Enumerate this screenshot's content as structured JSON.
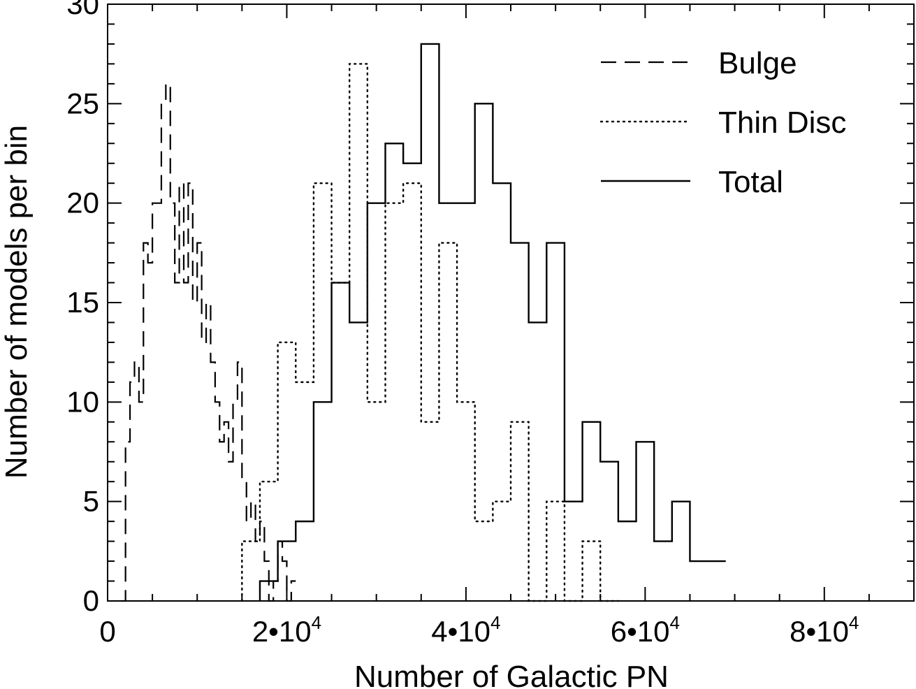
{
  "chart_data": {
    "type": "histogram",
    "title": "",
    "xlabel": "Number of Galactic PN",
    "ylabel": "Number of models per bin",
    "xlim": [
      0,
      90000
    ],
    "ylim": [
      0,
      30
    ],
    "x_ticks": [
      {
        "value": 0,
        "label": "0"
      },
      {
        "value": 20000,
        "mantissa": "2",
        "base": "•10",
        "exp": "4"
      },
      {
        "value": 40000,
        "mantissa": "4",
        "base": "•10",
        "exp": "4"
      },
      {
        "value": 60000,
        "mantissa": "6",
        "base": "•10",
        "exp": "4"
      },
      {
        "value": 80000,
        "mantissa": "8",
        "base": "•10",
        "exp": "4"
      }
    ],
    "y_ticks": [
      {
        "value": 0,
        "label": "0"
      },
      {
        "value": 5,
        "label": "5"
      },
      {
        "value": 10,
        "label": "10"
      },
      {
        "value": 15,
        "label": "15"
      },
      {
        "value": 20,
        "label": "20"
      },
      {
        "value": 25,
        "label": "25"
      },
      {
        "value": 30,
        "label": "30"
      }
    ],
    "legend_position": "top-right",
    "series": [
      {
        "name": "Bulge",
        "style": "dashed",
        "bin_width": 500,
        "bin_start": 1500,
        "values": [
          0,
          8,
          11,
          12,
          10,
          18,
          17,
          20,
          20,
          25,
          26,
          20,
          16,
          21,
          16,
          21,
          15,
          18,
          13,
          15,
          12,
          10,
          8,
          9,
          7,
          10,
          12,
          6,
          4,
          5,
          3,
          4,
          2,
          0,
          1,
          3,
          2,
          0,
          1
        ]
      },
      {
        "name": "Thin Disc",
        "style": "dotted",
        "bin_width": 2000,
        "bin_start": 15000,
        "values": [
          3,
          6,
          13,
          11,
          21,
          16,
          27,
          10,
          20,
          21,
          9,
          18,
          10,
          4,
          5,
          9,
          0,
          5,
          0,
          3,
          0
        ]
      },
      {
        "name": "Total",
        "style": "solid",
        "bin_width": 2000,
        "bin_start": 17000,
        "values": [
          1,
          3,
          4,
          10,
          16,
          14,
          20,
          23,
          22,
          28,
          20,
          20,
          25,
          21,
          18,
          14,
          18,
          5,
          9,
          7,
          4,
          8,
          3,
          5,
          2,
          2
        ]
      }
    ]
  }
}
